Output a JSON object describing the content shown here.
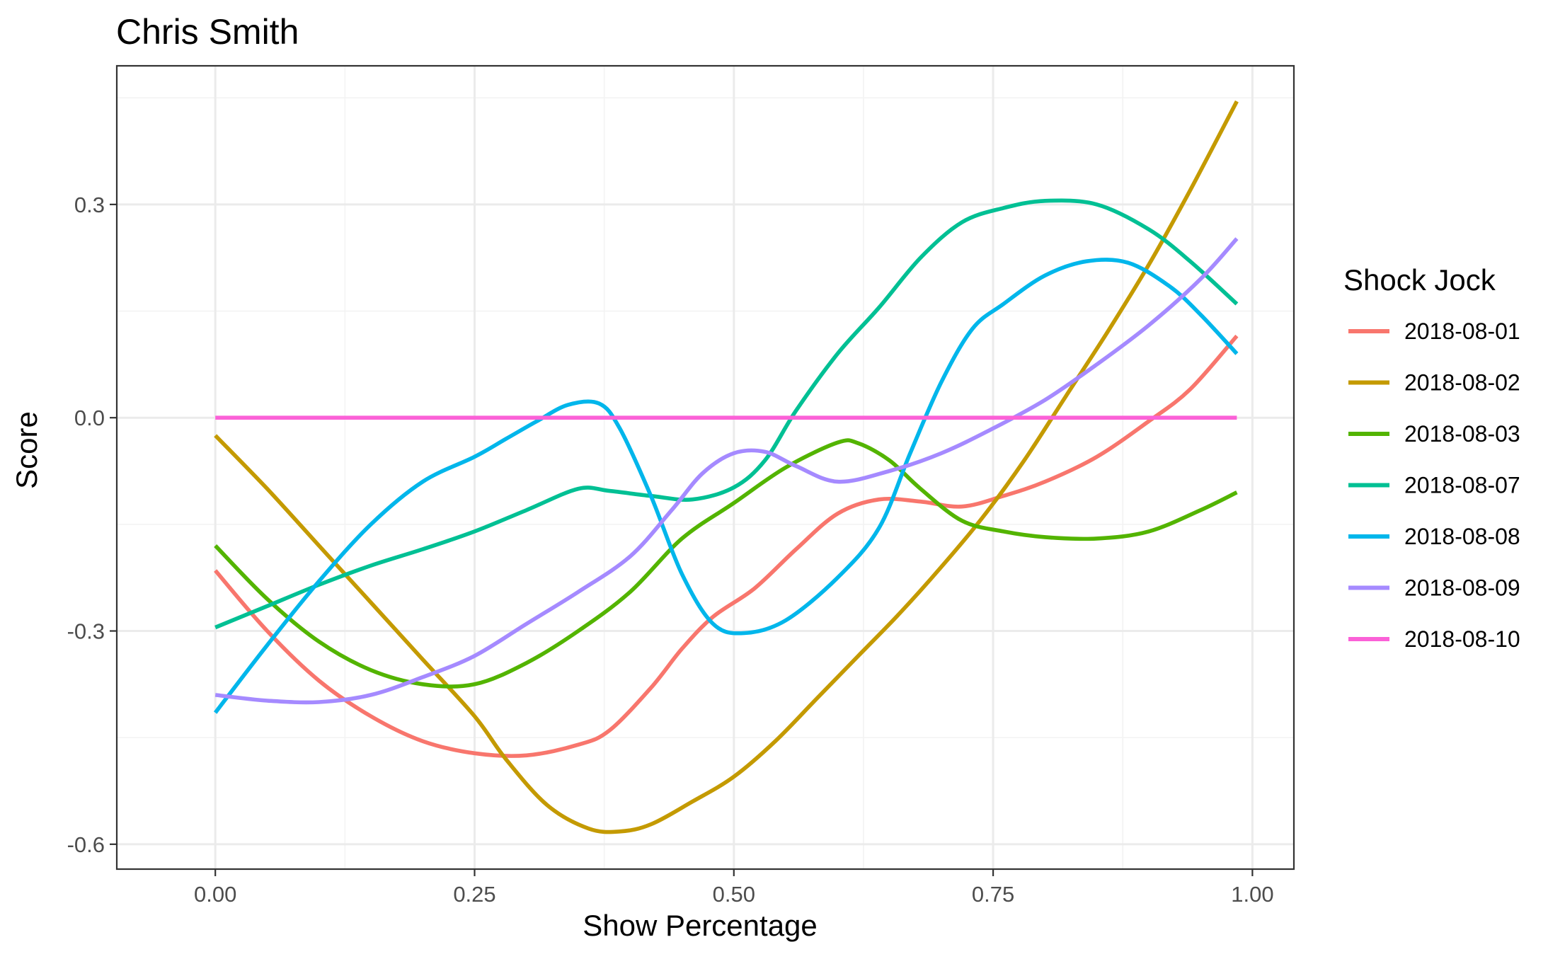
{
  "chart_data": {
    "type": "line",
    "title": "Chris Smith",
    "xlabel": "Show Percentage",
    "ylabel": "Score",
    "xlim": [
      -0.095,
      1.04
    ],
    "ylim": [
      -0.635,
      0.495
    ],
    "x_ticks": [
      0.0,
      0.25,
      0.5,
      0.75,
      1.0
    ],
    "x_tick_labels": [
      "0.00",
      "0.25",
      "0.50",
      "0.75",
      "1.00"
    ],
    "y_ticks": [
      -0.6,
      -0.3,
      0.0,
      0.3
    ],
    "y_tick_labels": [
      "-0.6",
      "-0.3",
      "0.0",
      "0.3"
    ],
    "grid": true,
    "legend": {
      "title": "Shock Jock",
      "position": "right"
    },
    "series": [
      {
        "name": "2018-08-01",
        "color": "#F8766D",
        "x": [
          0.0,
          0.05,
          0.1,
          0.15,
          0.2,
          0.25,
          0.3,
          0.35,
          0.38,
          0.42,
          0.45,
          0.48,
          0.52,
          0.56,
          0.6,
          0.64,
          0.68,
          0.72,
          0.76,
          0.8,
          0.85,
          0.9,
          0.94,
          0.985
        ],
        "y": [
          -0.215,
          -0.3,
          -0.37,
          -0.42,
          -0.455,
          -0.472,
          -0.475,
          -0.46,
          -0.44,
          -0.38,
          -0.325,
          -0.28,
          -0.24,
          -0.185,
          -0.135,
          -0.115,
          -0.118,
          -0.125,
          -0.11,
          -0.09,
          -0.055,
          -0.005,
          0.04,
          0.115
        ]
      },
      {
        "name": "2018-08-02",
        "color": "#C49A00",
        "x": [
          0.0,
          0.05,
          0.1,
          0.15,
          0.2,
          0.25,
          0.28,
          0.32,
          0.36,
          0.39,
          0.42,
          0.46,
          0.5,
          0.54,
          0.58,
          0.62,
          0.66,
          0.7,
          0.74,
          0.78,
          0.82,
          0.86,
          0.9,
          0.94,
          0.985
        ],
        "y": [
          -0.025,
          -0.1,
          -0.18,
          -0.26,
          -0.34,
          -0.42,
          -0.48,
          -0.545,
          -0.578,
          -0.582,
          -0.572,
          -0.54,
          -0.505,
          -0.455,
          -0.395,
          -0.335,
          -0.275,
          -0.21,
          -0.14,
          -0.06,
          0.03,
          0.12,
          0.215,
          0.32,
          0.445
        ]
      },
      {
        "name": "2018-08-03",
        "color": "#53B400",
        "x": [
          0.0,
          0.05,
          0.1,
          0.15,
          0.2,
          0.25,
          0.3,
          0.35,
          0.4,
          0.45,
          0.5,
          0.55,
          0.6,
          0.62,
          0.65,
          0.68,
          0.72,
          0.76,
          0.8,
          0.85,
          0.9,
          0.95,
          0.985
        ],
        "y": [
          -0.18,
          -0.255,
          -0.315,
          -0.355,
          -0.375,
          -0.375,
          -0.345,
          -0.3,
          -0.245,
          -0.17,
          -0.12,
          -0.07,
          -0.035,
          -0.036,
          -0.06,
          -0.1,
          -0.145,
          -0.16,
          -0.168,
          -0.17,
          -0.16,
          -0.13,
          -0.105
        ]
      },
      {
        "name": "2018-08-07",
        "color": "#00C094",
        "x": [
          0.0,
          0.05,
          0.1,
          0.15,
          0.2,
          0.25,
          0.3,
          0.35,
          0.38,
          0.42,
          0.46,
          0.5,
          0.53,
          0.56,
          0.6,
          0.64,
          0.68,
          0.72,
          0.76,
          0.8,
          0.85,
          0.9,
          0.94,
          0.985
        ],
        "y": [
          -0.295,
          -0.265,
          -0.235,
          -0.208,
          -0.185,
          -0.16,
          -0.13,
          -0.1,
          -0.103,
          -0.11,
          -0.115,
          -0.098,
          -0.06,
          0.01,
          0.09,
          0.155,
          0.225,
          0.275,
          0.295,
          0.305,
          0.3,
          0.265,
          0.22,
          0.16
        ]
      },
      {
        "name": "2018-08-08",
        "color": "#00B6EB",
        "x": [
          0.0,
          0.05,
          0.1,
          0.15,
          0.2,
          0.25,
          0.28,
          0.31,
          0.34,
          0.37,
          0.39,
          0.42,
          0.45,
          0.48,
          0.51,
          0.55,
          0.6,
          0.64,
          0.67,
          0.7,
          0.73,
          0.76,
          0.8,
          0.84,
          0.88,
          0.92,
          0.95,
          0.985
        ],
        "y": [
          -0.415,
          -0.32,
          -0.23,
          -0.15,
          -0.09,
          -0.055,
          -0.03,
          -0.005,
          0.018,
          0.02,
          -0.015,
          -0.11,
          -0.22,
          -0.29,
          -0.303,
          -0.285,
          -0.225,
          -0.155,
          -0.05,
          0.05,
          0.125,
          0.16,
          0.2,
          0.22,
          0.218,
          0.185,
          0.145,
          0.09
        ]
      },
      {
        "name": "2018-08-09",
        "color": "#A58AFF",
        "x": [
          0.0,
          0.05,
          0.1,
          0.15,
          0.2,
          0.25,
          0.3,
          0.35,
          0.4,
          0.44,
          0.47,
          0.5,
          0.53,
          0.56,
          0.6,
          0.65,
          0.7,
          0.75,
          0.8,
          0.85,
          0.9,
          0.95,
          0.985
        ],
        "y": [
          -0.39,
          -0.398,
          -0.4,
          -0.39,
          -0.365,
          -0.335,
          -0.29,
          -0.245,
          -0.195,
          -0.13,
          -0.078,
          -0.05,
          -0.048,
          -0.068,
          -0.09,
          -0.075,
          -0.05,
          -0.015,
          0.025,
          0.075,
          0.13,
          0.195,
          0.252
        ]
      },
      {
        "name": "2018-08-10",
        "color": "#FB61D7",
        "x": [
          0.0,
          0.985
        ],
        "y": [
          0.0,
          0.0
        ]
      }
    ]
  }
}
